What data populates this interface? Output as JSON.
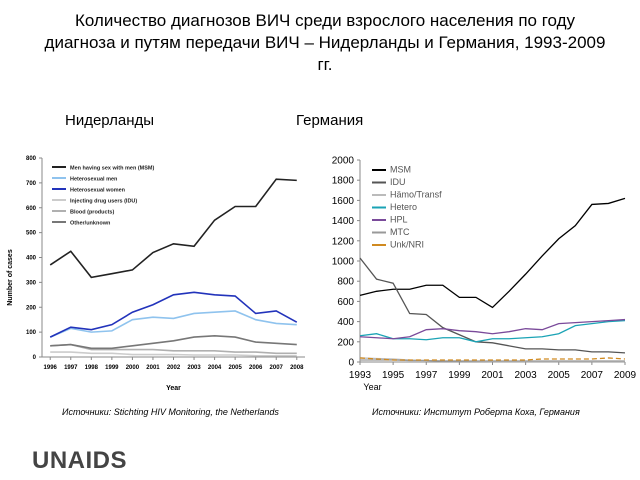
{
  "title": "Количество диагнозов ВИЧ среди взрослого населения по году диагноза и путям передачи ВИЧ – Нидерланды и Германия, 1993-2009 гг.",
  "panels": [
    {
      "label": "Нидерланды",
      "source": "Источники: Stichting HIV Monitoring, the Netherlands"
    },
    {
      "label": "Германия",
      "source": "Источники: Институт Роберта Коха, Германия"
    }
  ],
  "logo": "UNAIDS",
  "chart_data": [
    {
      "type": "line",
      "xlabel": "Year",
      "ylabel": "Number of cases",
      "legend": "upper left",
      "grid": false,
      "x": [
        1996,
        1997,
        1998,
        1999,
        2000,
        2001,
        2002,
        2003,
        2004,
        2005,
        2006,
        2007,
        2008
      ],
      "xlim": [
        1995.6,
        2008.4
      ],
      "xticks": [
        1996,
        1997,
        1998,
        1999,
        2000,
        2001,
        2002,
        2003,
        2004,
        2005,
        2006,
        2007,
        2008
      ],
      "ylim": [
        0,
        800
      ],
      "yticks": [
        0,
        100,
        200,
        300,
        400,
        500,
        600,
        700,
        800
      ],
      "series": [
        {
          "name": "Men having sex with men (MSM)",
          "color": "#222222",
          "values": [
            370,
            425,
            320,
            335,
            350,
            420,
            455,
            445,
            550,
            605,
            605,
            715,
            710
          ]
        },
        {
          "name": "Heterosexual men",
          "color": "#8fc3ee",
          "values": [
            80,
            115,
            100,
            105,
            150,
            160,
            155,
            175,
            180,
            185,
            150,
            135,
            130
          ]
        },
        {
          "name": "Heterosexual women",
          "color": "#2233bb",
          "values": [
            80,
            120,
            110,
            130,
            180,
            210,
            250,
            260,
            250,
            245,
            175,
            185,
            140
          ]
        },
        {
          "name": "Injecting drug users (IDU)",
          "color": "#cccccc",
          "values": [
            20,
            20,
            15,
            15,
            10,
            10,
            10,
            8,
            8,
            8,
            5,
            5,
            5
          ]
        },
        {
          "name": "Blood (products)",
          "color": "#b0b0b0",
          "values": [
            45,
            50,
            30,
            30,
            30,
            30,
            25,
            25,
            25,
            20,
            20,
            15,
            15
          ]
        },
        {
          "name": "Other/unknown",
          "color": "#777777",
          "values": [
            45,
            50,
            35,
            35,
            45,
            55,
            65,
            80,
            85,
            80,
            60,
            55,
            50
          ]
        }
      ]
    },
    {
      "type": "line",
      "xlabel": "Year",
      "legend": "upper left",
      "grid": false,
      "x": [
        1993,
        1994,
        1995,
        1996,
        1997,
        1998,
        1999,
        2000,
        2001,
        2002,
        2003,
        2004,
        2005,
        2006,
        2007,
        2008,
        2009
      ],
      "xlim": [
        1993,
        2009
      ],
      "xticks": [
        1993,
        1995,
        1997,
        1999,
        2001,
        2003,
        2005,
        2007,
        2009
      ],
      "ylim": [
        0,
        2000
      ],
      "yticks": [
        0,
        200,
        400,
        600,
        800,
        1000,
        1200,
        1400,
        1600,
        1800,
        2000
      ],
      "series": [
        {
          "name": "MSM",
          "color": "#000000",
          "values": [
            660,
            700,
            720,
            720,
            760,
            760,
            640,
            640,
            540,
            700,
            870,
            1050,
            1220,
            1350,
            1560,
            1570,
            1620
          ]
        },
        {
          "name": "IDU",
          "color": "#555555",
          "values": [
            1030,
            820,
            780,
            480,
            470,
            340,
            270,
            200,
            190,
            160,
            130,
            130,
            120,
            120,
            100,
            100,
            90
          ]
        },
        {
          "name": "Hämo/Transf",
          "color": "#bbbbbb",
          "values": [
            40,
            35,
            30,
            20,
            15,
            10,
            10,
            8,
            5,
            5,
            5,
            5,
            5,
            5,
            5,
            5,
            5
          ]
        },
        {
          "name": "Hetero",
          "color": "#1aa3b5",
          "values": [
            260,
            280,
            230,
            230,
            220,
            240,
            240,
            200,
            230,
            230,
            240,
            250,
            280,
            360,
            380,
            400,
            410
          ]
        },
        {
          "name": "HPL",
          "color": "#7a4a9a",
          "values": [
            250,
            240,
            230,
            250,
            320,
            330,
            310,
            300,
            280,
            300,
            330,
            320,
            380,
            390,
            400,
            410,
            420
          ]
        },
        {
          "name": "MTC",
          "color": "#999999",
          "values": [
            20,
            20,
            20,
            15,
            15,
            10,
            10,
            10,
            10,
            10,
            10,
            10,
            10,
            10,
            10,
            10,
            10
          ]
        },
        {
          "name": "Unk/NRI",
          "color": "#d08a20",
          "values": [
            40,
            30,
            20,
            20,
            20,
            20,
            20,
            20,
            20,
            20,
            20,
            30,
            30,
            30,
            30,
            40,
            30
          ]
        }
      ]
    }
  ]
}
